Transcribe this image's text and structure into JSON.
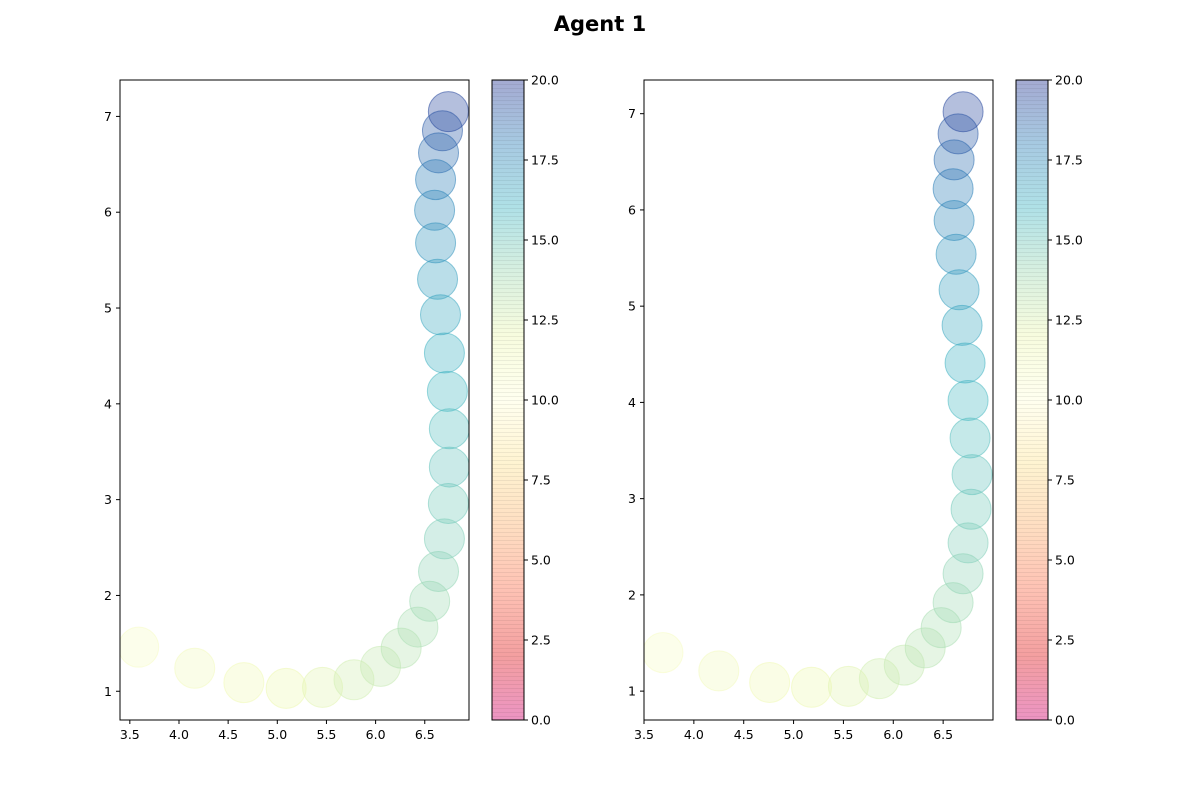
{
  "title": "Agent 1",
  "colormap_stops": [
    "#d0006f",
    "#e31a1c",
    "#fb6a4a",
    "#fdae6b",
    "#fee391",
    "#ffffd9",
    "#edf8b1",
    "#a1dab4",
    "#41b6c4",
    "#2c7fb8",
    "#253494"
  ],
  "chart_data": [
    {
      "type": "scatter",
      "title": "",
      "xlabel": "",
      "ylabel": "",
      "xlim": [
        3.4,
        6.95
      ],
      "ylim": [
        0.7,
        7.38
      ],
      "xticks": [
        3.5,
        4.0,
        4.5,
        5.0,
        5.5,
        6.0,
        6.5
      ],
      "yticks": [
        1,
        2,
        3,
        4,
        5,
        6,
        7
      ],
      "grid": false,
      "colorbar": {
        "range": [
          0,
          20
        ],
        "ticks": [
          "0.0",
          "2.5",
          "5.0",
          "7.5",
          "10.0",
          "12.5",
          "15.0",
          "17.5",
          "20.0"
        ]
      },
      "points": [
        {
          "x": 3.59,
          "y": 1.46,
          "c": 11
        },
        {
          "x": 4.16,
          "y": 1.24,
          "c": 11.4
        },
        {
          "x": 4.66,
          "y": 1.09,
          "c": 11.7
        },
        {
          "x": 5.09,
          "y": 1.03,
          "c": 12
        },
        {
          "x": 5.46,
          "y": 1.04,
          "c": 12.3
        },
        {
          "x": 5.78,
          "y": 1.12,
          "c": 12.7
        },
        {
          "x": 6.05,
          "y": 1.26,
          "c": 13
        },
        {
          "x": 6.26,
          "y": 1.45,
          "c": 13.4
        },
        {
          "x": 6.43,
          "y": 1.67,
          "c": 13.7
        },
        {
          "x": 6.55,
          "y": 1.94,
          "c": 14
        },
        {
          "x": 6.64,
          "y": 2.25,
          "c": 14.3
        },
        {
          "x": 6.7,
          "y": 2.59,
          "c": 14.6
        },
        {
          "x": 6.74,
          "y": 2.96,
          "c": 14.9
        },
        {
          "x": 6.75,
          "y": 3.34,
          "c": 15.2
        },
        {
          "x": 6.75,
          "y": 3.74,
          "c": 15.5
        },
        {
          "x": 6.73,
          "y": 4.13,
          "c": 15.8
        },
        {
          "x": 6.7,
          "y": 4.53,
          "c": 16.1
        },
        {
          "x": 6.66,
          "y": 4.93,
          "c": 16.5
        },
        {
          "x": 6.63,
          "y": 5.3,
          "c": 16.8
        },
        {
          "x": 6.61,
          "y": 5.68,
          "c": 17.2
        },
        {
          "x": 6.6,
          "y": 6.02,
          "c": 17.6
        },
        {
          "x": 6.61,
          "y": 6.34,
          "c": 18
        },
        {
          "x": 6.64,
          "y": 6.62,
          "c": 18.5
        },
        {
          "x": 6.68,
          "y": 6.85,
          "c": 19
        },
        {
          "x": 6.74,
          "y": 7.05,
          "c": 19.5
        }
      ]
    },
    {
      "type": "scatter",
      "title": "",
      "xlabel": "",
      "ylabel": "",
      "xlim": [
        3.5,
        7.0
      ],
      "ylim": [
        0.7,
        7.35
      ],
      "xticks": [
        3.5,
        4.0,
        4.5,
        5.0,
        5.5,
        6.0,
        6.5
      ],
      "yticks": [
        1,
        2,
        3,
        4,
        5,
        6,
        7
      ],
      "grid": false,
      "colorbar": {
        "range": [
          0,
          20
        ],
        "ticks": [
          "0.0",
          "2.5",
          "5.0",
          "7.5",
          "10.0",
          "12.5",
          "15.0",
          "17.5",
          "20.0"
        ]
      },
      "points": [
        {
          "x": 3.69,
          "y": 1.4,
          "c": 11
        },
        {
          "x": 4.25,
          "y": 1.21,
          "c": 11.4
        },
        {
          "x": 4.76,
          "y": 1.09,
          "c": 11.7
        },
        {
          "x": 5.18,
          "y": 1.04,
          "c": 12
        },
        {
          "x": 5.55,
          "y": 1.05,
          "c": 12.3
        },
        {
          "x": 5.86,
          "y": 1.13,
          "c": 12.7
        },
        {
          "x": 6.11,
          "y": 1.27,
          "c": 13
        },
        {
          "x": 6.32,
          "y": 1.45,
          "c": 13.4
        },
        {
          "x": 6.48,
          "y": 1.66,
          "c": 13.7
        },
        {
          "x": 6.6,
          "y": 1.92,
          "c": 14
        },
        {
          "x": 6.7,
          "y": 2.22,
          "c": 14.3
        },
        {
          "x": 6.75,
          "y": 2.54,
          "c": 14.6
        },
        {
          "x": 6.78,
          "y": 2.89,
          "c": 14.9
        },
        {
          "x": 6.79,
          "y": 3.25,
          "c": 15.2
        },
        {
          "x": 6.77,
          "y": 3.63,
          "c": 15.5
        },
        {
          "x": 6.75,
          "y": 4.02,
          "c": 15.8
        },
        {
          "x": 6.72,
          "y": 4.41,
          "c": 16.1
        },
        {
          "x": 6.69,
          "y": 4.8,
          "c": 16.5
        },
        {
          "x": 6.66,
          "y": 5.17,
          "c": 16.8
        },
        {
          "x": 6.63,
          "y": 5.54,
          "c": 17.2
        },
        {
          "x": 6.61,
          "y": 5.89,
          "c": 17.6
        },
        {
          "x": 6.6,
          "y": 6.22,
          "c": 18
        },
        {
          "x": 6.61,
          "y": 6.52,
          "c": 18.5
        },
        {
          "x": 6.65,
          "y": 6.79,
          "c": 19
        },
        {
          "x": 6.7,
          "y": 7.02,
          "c": 19.5
        }
      ]
    }
  ]
}
